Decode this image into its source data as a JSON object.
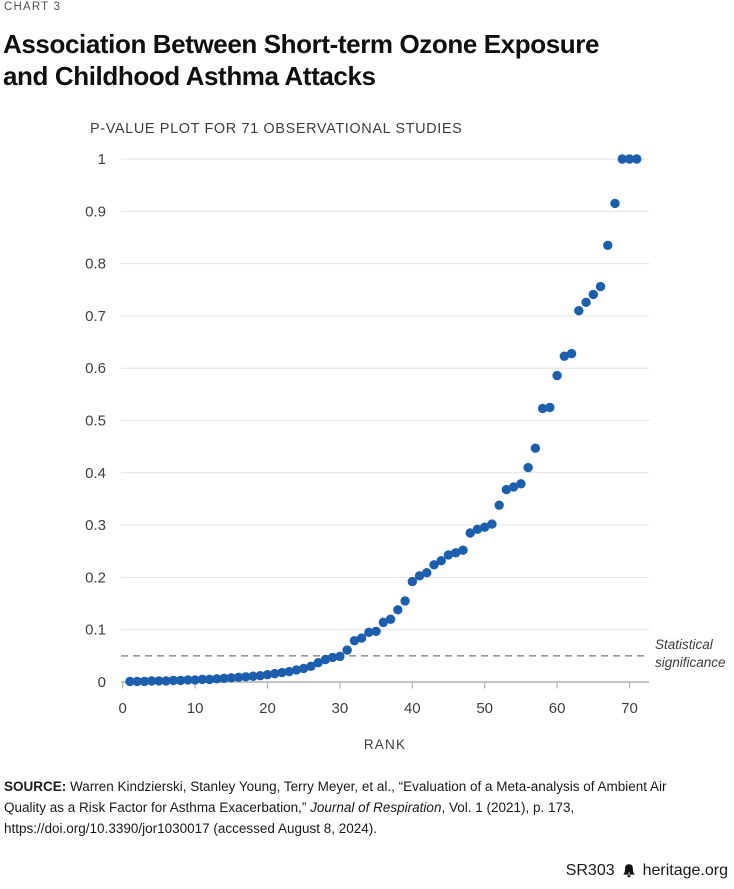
{
  "header": {
    "kicker": "CHART 3",
    "title_line1": "Association Between Short-term Ozone Exposure",
    "title_line2": "and Childhood Asthma Attacks"
  },
  "chart_data": {
    "type": "scatter",
    "subtitle": "P-VALUE PLOT FOR 71 OBSERVATIONAL STUDIES",
    "xlabel": "RANK",
    "n_points": 71,
    "x_description": "rank of study, 1 through 71",
    "values": [
      0.001,
      0.001,
      0.001,
      0.002,
      0.002,
      0.002,
      0.003,
      0.003,
      0.004,
      0.004,
      0.005,
      0.005,
      0.006,
      0.007,
      0.008,
      0.009,
      0.01,
      0.011,
      0.012,
      0.014,
      0.016,
      0.018,
      0.02,
      0.023,
      0.026,
      0.03,
      0.037,
      0.043,
      0.047,
      0.049,
      0.061,
      0.079,
      0.084,
      0.095,
      0.097,
      0.114,
      0.12,
      0.138,
      0.155,
      0.192,
      0.203,
      0.209,
      0.224,
      0.232,
      0.243,
      0.247,
      0.252,
      0.285,
      0.292,
      0.296,
      0.302,
      0.338,
      0.368,
      0.373,
      0.379,
      0.41,
      0.447,
      0.523,
      0.525,
      0.586,
      0.623,
      0.628,
      0.71,
      0.726,
      0.741,
      0.756,
      0.835,
      0.915,
      1.0,
      1.0,
      1.0
    ],
    "xticks": [
      0,
      10,
      20,
      30,
      40,
      50,
      60,
      70
    ],
    "ytick_labels": [
      "0",
      "0.1",
      "0.2",
      "0.3",
      "0.4",
      "0.5",
      "0.6",
      "0.7",
      "0.8",
      "0.9",
      "1"
    ],
    "xlim": [
      0,
      72.5
    ],
    "ylim": [
      0,
      1
    ],
    "grid": true,
    "legend": "none",
    "dot_color": "#1b5fae",
    "grid_color": "#e2e2e2",
    "axis_color": "#b0b0b0",
    "label_color": "#3f3f3f",
    "reference_line": {
      "value": 0.05,
      "style": "dashed",
      "color": "#999999",
      "label": [
        "Statistical",
        "significance"
      ]
    }
  },
  "source": {
    "label": "SOURCE:",
    "before_italic": " Warren Kindzierski, Stanley Young, Terry Meyer, et al., “Evaluation of a Meta-analysis of Ambient Air Quality as a Risk Factor for Asthma Exacerbation,” ",
    "italic": "Journal of Respiration",
    "after_italic": ", Vol. 1 (2021), p. 173, https://doi.org/10.3390/jor1030017 (accessed August 8, 2024)."
  },
  "footer": {
    "report_id": "SR303",
    "site": "heritage.org",
    "logo": "heritage-bell-icon"
  }
}
